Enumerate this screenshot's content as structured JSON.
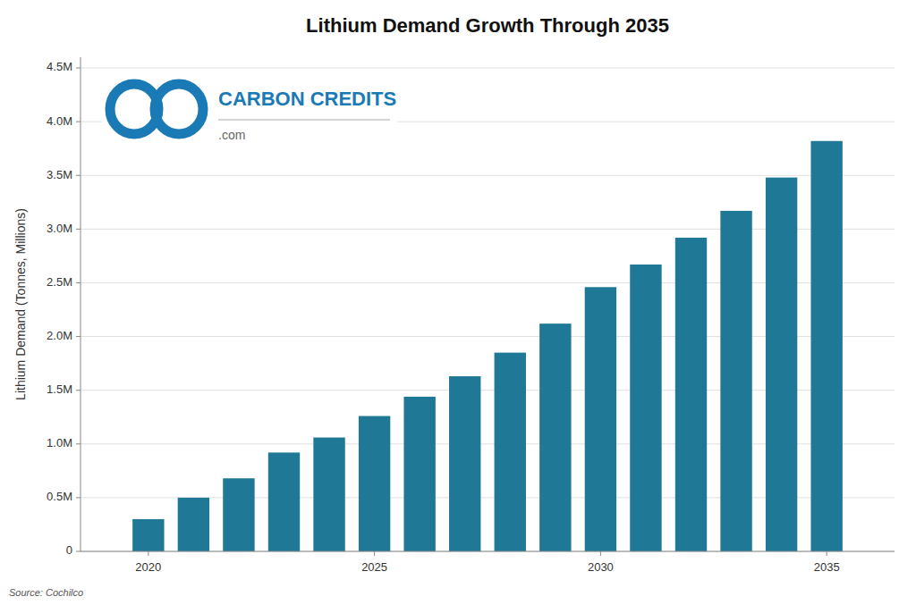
{
  "chart_data": {
    "type": "bar",
    "title": "Lithium Demand Growth Through 2035",
    "ylabel": "Lithium Demand (Tonnes, Millions)",
    "x": [
      2020,
      2021,
      2022,
      2023,
      2024,
      2025,
      2026,
      2027,
      2028,
      2029,
      2030,
      2031,
      2032,
      2033,
      2034,
      2035
    ],
    "values": [
      0.3,
      0.5,
      0.68,
      0.92,
      1.06,
      1.26,
      1.44,
      1.63,
      1.85,
      2.12,
      2.46,
      2.67,
      2.92,
      3.17,
      3.48,
      3.82
    ],
    "color": "#1e7896",
    "xlim": [
      2018.5,
      2036.5
    ],
    "xticks": [
      2020,
      2025,
      2030,
      2035
    ],
    "ylim": [
      0,
      4.6
    ],
    "yticks": [
      0,
      {
        "value": 0.5,
        "label": "0.5M"
      },
      {
        "value": 1.0,
        "label": "1.0M"
      },
      {
        "value": 1.5,
        "label": "1.5M"
      },
      {
        "value": 2.0,
        "label": "2.0M"
      },
      {
        "value": 2.5,
        "label": "2.5M"
      },
      {
        "value": 3.0,
        "label": "3.0M"
      },
      {
        "value": 3.5,
        "label": "3.5M"
      },
      {
        "value": 4.0,
        "label": "4.0M"
      },
      {
        "value": 4.5,
        "label": "4.5M"
      }
    ],
    "grid": true,
    "annotations": [
      "Source: Cochilco",
      "CARBON CREDITS",
      ".com"
    ]
  }
}
